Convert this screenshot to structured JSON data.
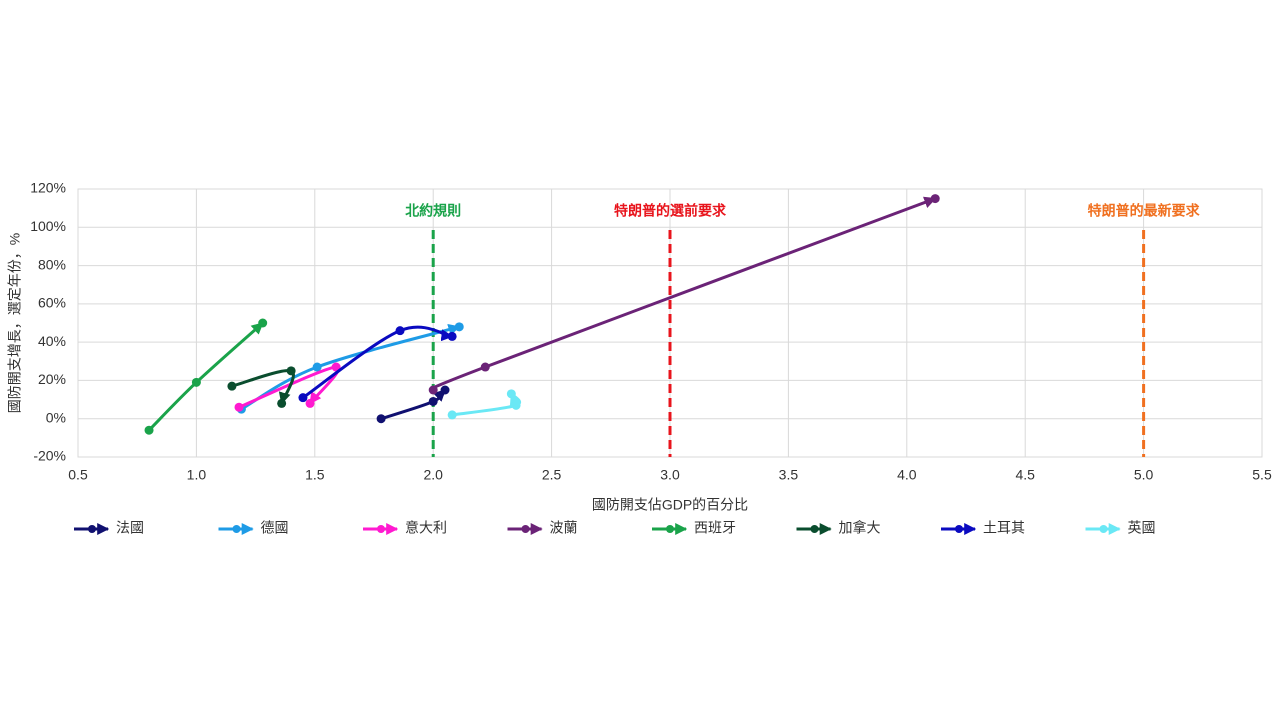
{
  "chart_data": {
    "type": "scatter",
    "connected": true,
    "smooth": true,
    "arrows": true,
    "x_label": "國防開支佔GDP的百分比",
    "y_label": "國防開支增長，選定年份，%",
    "xlim": [
      0.5,
      5.5
    ],
    "xticks": [
      0.5,
      {
        "value": 1,
        "label": "1.0"
      },
      1.5,
      {
        "value": 2,
        "label": "2.0"
      },
      2.5,
      {
        "value": 3,
        "label": "3.0"
      },
      3.5,
      {
        "value": 4,
        "label": "4.0"
      },
      4.5,
      {
        "value": 5,
        "label": "5.0"
      },
      5.5
    ],
    "ylim": [
      -20,
      120
    ],
    "yticks": [
      {
        "value": -20,
        "label": "-20%"
      },
      {
        "value": 0,
        "label": "0%"
      },
      {
        "value": 20,
        "label": "20%"
      },
      {
        "value": 40,
        "label": "40%"
      },
      {
        "value": 60,
        "label": "60%"
      },
      {
        "value": 80,
        "label": "80%"
      },
      {
        "value": 100,
        "label": "100%"
      },
      {
        "value": 120,
        "label": "120%"
      }
    ],
    "grid": true,
    "legend": "bottom",
    "reference_lines": [
      {
        "x": 2.0,
        "label": "北約規則",
        "color": "#1aa34a"
      },
      {
        "x": 3.0,
        "label": "特朗普的選前要求",
        "color": "#e8141c"
      },
      {
        "x": 5.0,
        "label": "特朗普的最新要求",
        "color": "#f07020"
      }
    ],
    "series": [
      {
        "name": "法國",
        "color": "#101070",
        "x": [
          1.78,
          2.0,
          2.05
        ],
        "y": [
          0,
          9,
          15
        ]
      },
      {
        "name": "德國",
        "color": "#1e9be6",
        "x": [
          1.19,
          1.51,
          2.11
        ],
        "y": [
          5,
          27,
          48
        ]
      },
      {
        "name": "意大利",
        "color": "#ff1ad0",
        "x": [
          1.18,
          1.59,
          1.48
        ],
        "y": [
          6,
          27,
          8
        ]
      },
      {
        "name": "波蘭",
        "color": "#6b2377",
        "x": [
          2.0,
          2.22,
          4.12
        ],
        "y": [
          15,
          27,
          115
        ]
      },
      {
        "name": "西班牙",
        "color": "#1aa34a",
        "x": [
          0.8,
          1.0,
          1.28
        ],
        "y": [
          -6,
          19,
          50
        ]
      },
      {
        "name": "加拿大",
        "color": "#0a4d2e",
        "x": [
          1.15,
          1.4,
          1.36
        ],
        "y": [
          17,
          25,
          8
        ]
      },
      {
        "name": "土耳其",
        "color": "#0a0ac0",
        "x": [
          1.45,
          1.86,
          2.08
        ],
        "y": [
          11,
          46,
          43
        ]
      },
      {
        "name": "英國",
        "color": "#6ae8f5",
        "x": [
          2.08,
          2.35,
          2.33
        ],
        "y": [
          2,
          7,
          13
        ]
      }
    ]
  }
}
